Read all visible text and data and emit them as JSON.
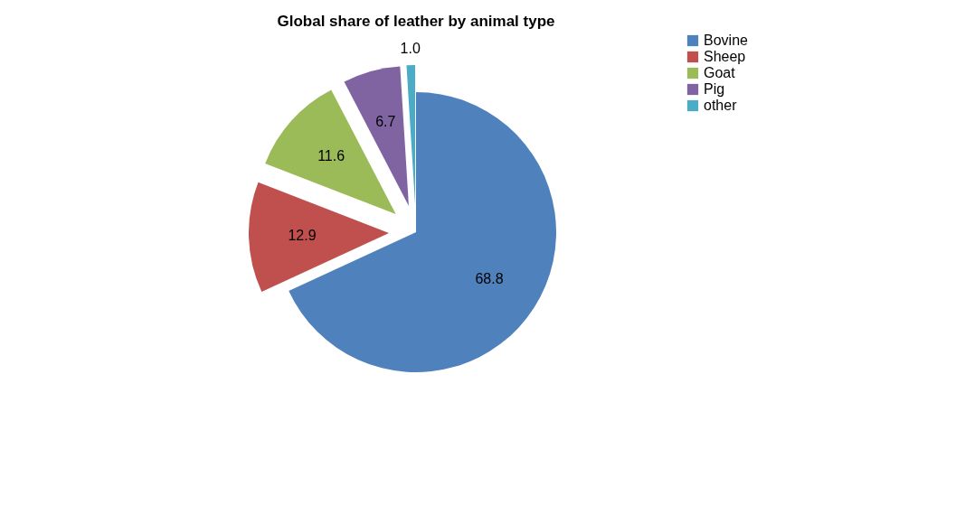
{
  "chart_data": {
    "type": "pie",
    "title": "Global share of leather by animal type",
    "categories": [
      "Bovine",
      "Sheep",
      "Goat",
      "Pig",
      "other"
    ],
    "values": [
      68.8,
      12.9,
      11.6,
      6.7,
      1.0
    ],
    "colors": [
      "#4f81bd",
      "#c0504d",
      "#9bbb59",
      "#8064a2",
      "#4bacc6"
    ],
    "value_labels": [
      "68.8",
      "12.9",
      "11.6",
      "6.7",
      "1.0"
    ],
    "legend": "right"
  }
}
